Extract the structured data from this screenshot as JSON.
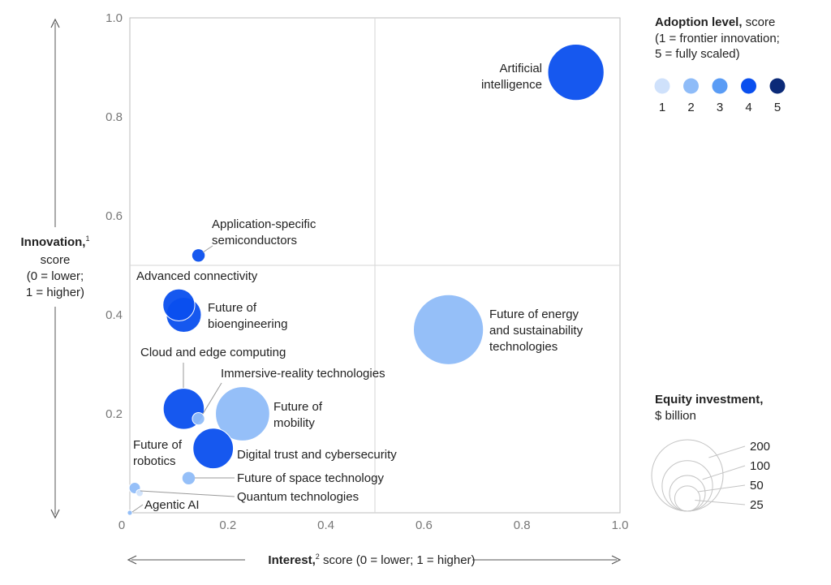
{
  "chart_data": {
    "type": "scatter",
    "xlabel": {
      "bold": "Interest,",
      "sup": "2",
      "rest": " score (0 = lower; 1 = higher)"
    },
    "ylabel": {
      "bold": "Innovation,",
      "sup": "1",
      "lines": [
        "score",
        "(0 = lower;",
        "1 = higher)"
      ]
    },
    "xlim": [
      0,
      1.0
    ],
    "ylim": [
      0,
      1.0
    ],
    "x_ticks": [
      "0",
      "0.2",
      "0.4",
      "0.6",
      "0.8",
      "1.0"
    ],
    "y_ticks": [
      "0.2",
      "0.4",
      "0.6",
      "0.8",
      "1.0"
    ],
    "quadrant_lines": {
      "x": 0.5,
      "y": 0.5
    },
    "points": [
      {
        "label": [
          "Artificial",
          "intelligence"
        ],
        "x": 0.91,
        "y": 0.89,
        "adoption": 4,
        "investment": 124
      },
      {
        "label": [
          "Application-specific",
          "semiconductors"
        ],
        "x": 0.14,
        "y": 0.52,
        "adoption": 4,
        "investment": 7
      },
      {
        "label": [
          "Advanced connectivity"
        ],
        "x": 0.1,
        "y": 0.42,
        "adoption": 4,
        "investment": 40
      },
      {
        "label": [
          "Future of",
          "bioengineering"
        ],
        "x": 0.11,
        "y": 0.4,
        "adoption": 4,
        "investment": 48
      },
      {
        "label": [
          "Future of energy",
          "and sustainability",
          "technologies"
        ],
        "x": 0.65,
        "y": 0.37,
        "adoption": 2,
        "investment": 192
      },
      {
        "label": [
          "Cloud and edge computing"
        ],
        "x": 0.11,
        "y": 0.21,
        "adoption": 4,
        "investment": 66
      },
      {
        "label": [
          "Immersive-reality technologies"
        ],
        "x": 0.14,
        "y": 0.19,
        "adoption": 2,
        "investment": 6
      },
      {
        "label": [
          "Future of",
          "mobility"
        ],
        "x": 0.23,
        "y": 0.2,
        "adoption": 2,
        "investment": 115
      },
      {
        "label": [
          "Digital trust and cybersecurity"
        ],
        "x": 0.17,
        "y": 0.13,
        "adoption": 4,
        "investment": 64
      },
      {
        "label": [
          "Future of space technology"
        ],
        "x": 0.12,
        "y": 0.07,
        "adoption": 2,
        "investment": 7
      },
      {
        "label": [
          "Future of",
          "robotics"
        ],
        "x": 0.01,
        "y": 0.05,
        "adoption": 2,
        "investment": 5
      },
      {
        "label": [
          "Quantum technologies"
        ],
        "x": 0.02,
        "y": 0.04,
        "adoption": 1,
        "investment": 2
      },
      {
        "label": [
          "Agentic AI"
        ],
        "x": 0.0,
        "y": 0.0,
        "adoption": 2,
        "investment": 1
      }
    ],
    "legend_adoption": {
      "title_bold": "Adoption level,",
      "title_rest": " score",
      "lines": [
        "(1 = frontier innovation;",
        "5 = fully scaled)"
      ],
      "levels": [
        "1",
        "2",
        "3",
        "4",
        "5"
      ],
      "colors": [
        "#cfe1fb",
        "#8fbcf8",
        "#5a9cf5",
        "#0a4fee",
        "#0b2a78"
      ]
    },
    "legend_size": {
      "title_bold": "Equity investment,",
      "title_rest": "$ billion",
      "values": [
        "200",
        "100",
        "50",
        "25"
      ]
    }
  }
}
